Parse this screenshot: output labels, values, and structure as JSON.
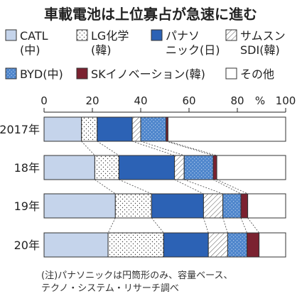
{
  "chart_data": {
    "type": "bar",
    "orientation": "horizontal",
    "stacked": true,
    "title": "車載電池は上位寡占が急速に進む",
    "unit_label": "%",
    "xlim": [
      0,
      100
    ],
    "x_ticks": [
      "0",
      "20",
      "40",
      "60",
      "80",
      "100"
    ],
    "categories": [
      "2017年",
      "18年",
      "19年",
      "20年"
    ],
    "series": [
      {
        "name": "CATL",
        "name_sub": "(中)",
        "color": "#c5d4eb",
        "pattern": "solid",
        "values": [
          15.5,
          21,
          29.5,
          26.5
        ]
      },
      {
        "name": "LG化学",
        "name_sub": "(韓)",
        "color": "#ffffff",
        "pattern": "dots",
        "values": [
          6.5,
          10,
          15,
          23
        ]
      },
      {
        "name": "パナソ",
        "name_sub": "ニック(日)",
        "color": "#2c62b5",
        "pattern": "solid",
        "values": [
          14.5,
          23,
          21.5,
          18.5
        ]
      },
      {
        "name": "サムスン",
        "name_sub": "SDI(韓)",
        "color": "#ffffff",
        "pattern": "hatch",
        "values": [
          3.5,
          4,
          8,
          8
        ]
      },
      {
        "name": "BYD(中)",
        "name_sub": "",
        "color": "#4f86cc",
        "pattern": "dotted-blue",
        "values": [
          10.5,
          12,
          7.5,
          8
        ]
      },
      {
        "name": "SKイノベーション(韓)",
        "name_sub": "",
        "color": "#7b2230",
        "pattern": "solid",
        "values": [
          0.8,
          1.5,
          2.8,
          5
        ]
      },
      {
        "name": "その他",
        "name_sub": "",
        "color": "#ffffff",
        "pattern": "solid",
        "values": [
          48.7,
          28.5,
          15.7,
          11
        ]
      }
    ],
    "note_lines": [
      "(注)パナソニックは円筒形のみ、容量ベース、",
      "テクノ・システム・リサーチ調べ"
    ],
    "grid": false,
    "legend_position": "top"
  }
}
